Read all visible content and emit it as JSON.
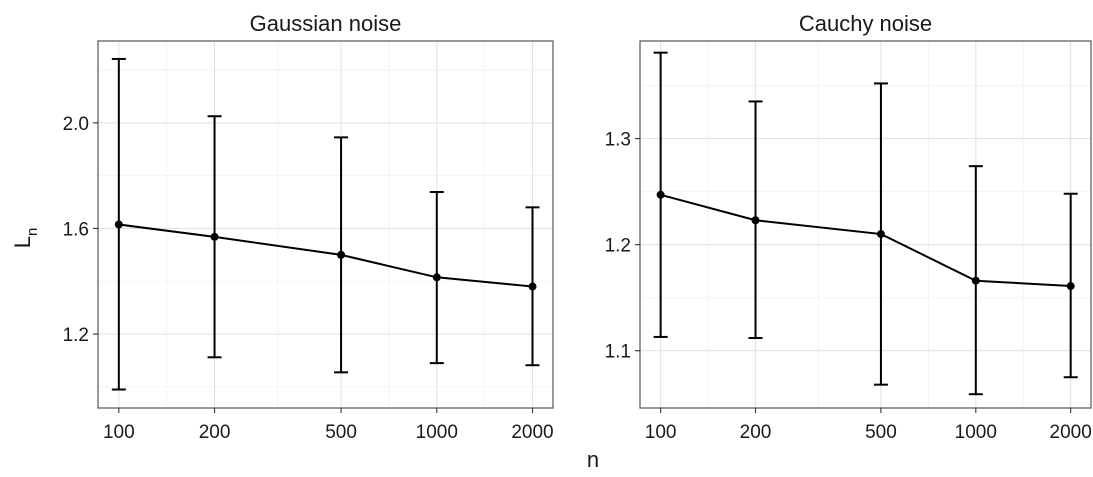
{
  "figure": {
    "xlabel": "n",
    "ylabel_main": "L",
    "ylabel_sub": "n"
  },
  "chart_data": [
    {
      "type": "line",
      "title": "Gaussian noise",
      "x": [
        100,
        200,
        500,
        1000,
        2000
      ],
      "x_tick_labels": [
        "100",
        "200",
        "500",
        "1000",
        "2000"
      ],
      "x_scale": "log",
      "xlim": [
        86,
        2320
      ],
      "y": [
        1.615,
        1.568,
        1.5,
        1.415,
        1.38
      ],
      "y_lower": [
        0.99,
        1.112,
        1.055,
        1.09,
        1.082
      ],
      "y_upper": [
        2.242,
        2.025,
        1.945,
        1.738,
        1.68
      ],
      "y_ticks": [
        1.2,
        1.6,
        2.0
      ],
      "y_tick_labels": [
        "1.2",
        "1.6",
        "2.0"
      ],
      "ylim": [
        0.92,
        2.31
      ],
      "grid": true,
      "error_bars": true
    },
    {
      "type": "line",
      "title": "Cauchy noise",
      "x": [
        100,
        200,
        500,
        1000,
        2000
      ],
      "x_tick_labels": [
        "100",
        "200",
        "500",
        "1000",
        "2000"
      ],
      "x_scale": "log",
      "xlim": [
        86,
        2320
      ],
      "y": [
        1.247,
        1.223,
        1.21,
        1.166,
        1.161
      ],
      "y_lower": [
        1.113,
        1.112,
        1.068,
        1.059,
        1.075
      ],
      "y_upper": [
        1.381,
        1.335,
        1.352,
        1.274,
        1.248
      ],
      "y_ticks": [
        1.1,
        1.2,
        1.3
      ],
      "y_tick_labels": [
        "1.1",
        "1.2",
        "1.3"
      ],
      "ylim": [
        1.046,
        1.392
      ],
      "grid": true,
      "error_bars": true
    }
  ]
}
